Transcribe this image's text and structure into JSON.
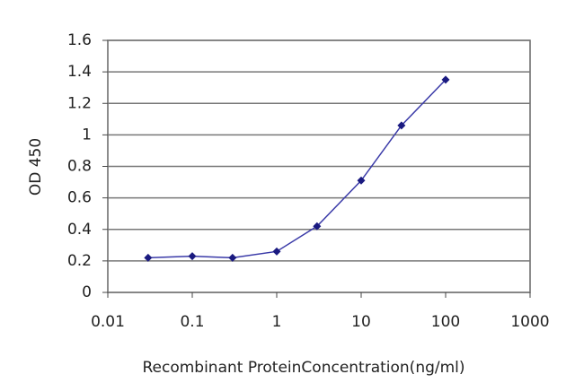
{
  "chart_data": {
    "type": "line",
    "xlabel": "Recombinant ProteinConcentration(ng/ml)",
    "ylabel": "OD 450",
    "x": [
      0.03,
      0.1,
      0.3,
      1,
      3,
      10,
      30,
      100
    ],
    "values": [
      0.22,
      0.23,
      0.22,
      0.26,
      0.42,
      0.71,
      1.06,
      1.35
    ],
    "color": "#3a3aa8",
    "xscale": "log",
    "xlim": [
      0.01,
      1000
    ],
    "xticks": [
      0.01,
      0.1,
      1,
      10,
      100,
      1000
    ],
    "ylim": [
      0,
      1.6
    ],
    "yticks": [
      0,
      0.2,
      0.4,
      0.6,
      0.8,
      1,
      1.2,
      1.4,
      1.6
    ],
    "grid": true
  }
}
